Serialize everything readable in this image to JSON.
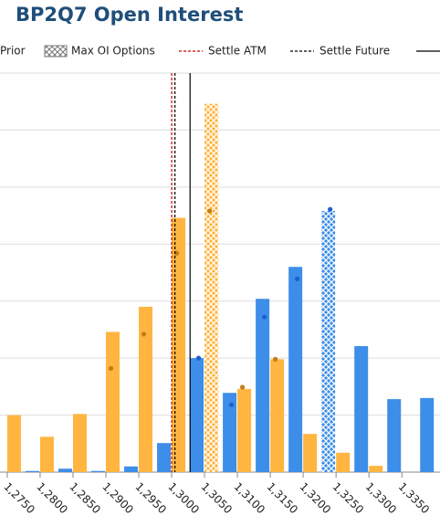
{
  "chart_data": {
    "type": "bar",
    "title": "BP2Q7 Open Interest",
    "prior_label": "Prior",
    "hatch_label": "Max OI Options",
    "x": [
      1.275,
      1.28,
      1.285,
      1.29,
      1.295,
      1.3,
      1.305,
      1.31,
      1.315,
      1.32,
      1.325,
      1.33,
      1.335,
      1.34
    ],
    "xlim": [
      1.2739,
      1.3408
    ],
    "xticks": [
      {
        "value": 1.275,
        "label": "1,2750"
      },
      {
        "value": 1.28,
        "label": "1,2800"
      },
      {
        "value": 1.285,
        "label": "1,2850"
      },
      {
        "value": 1.29,
        "label": "1,2900"
      },
      {
        "value": 1.295,
        "label": "1,2950"
      },
      {
        "value": 1.3,
        "label": "1,3000"
      },
      {
        "value": 1.305,
        "label": "1,3050"
      },
      {
        "value": 1.31,
        "label": "1,3100"
      },
      {
        "value": 1.315,
        "label": "1,3150"
      },
      {
        "value": 1.32,
        "label": "1,3200"
      },
      {
        "value": 1.325,
        "label": "1,3250"
      },
      {
        "value": 1.33,
        "label": "1,3300"
      },
      {
        "value": 1.335,
        "label": "1,3350"
      }
    ],
    "ylim": [
      0,
      7
    ],
    "yticks": [
      0,
      1,
      2,
      3,
      4,
      5,
      6,
      7
    ],
    "grid": true,
    "series": [
      {
        "color": "#3d8ee8",
        "prior_color": "#1e5fd0",
        "max_oi_index": 10,
        "values": [
          null,
          0.02,
          0.06,
          0.02,
          0.1,
          0.51,
          2.0,
          1.39,
          3.04,
          3.6,
          4.58,
          2.21,
          1.28,
          1.3
        ],
        "prior": [
          null,
          null,
          null,
          null,
          null,
          null,
          2.0,
          1.18,
          2.72,
          3.39,
          4.61,
          null,
          null,
          null
        ]
      },
      {
        "color": "#ffb540",
        "prior_color": "#c27d12",
        "max_oi_index": 6,
        "values": [
          1.0,
          0.62,
          1.02,
          2.46,
          2.9,
          4.46,
          6.46,
          1.46,
          1.98,
          0.67,
          0.34,
          0.11,
          null,
          null
        ],
        "prior": [
          null,
          null,
          null,
          1.82,
          2.42,
          3.84,
          4.58,
          1.49,
          1.98,
          null,
          null,
          null,
          null,
          null
        ]
      }
    ],
    "reference_lines": [
      {
        "name": "Settle ATM",
        "value": 1.3,
        "color": "#cc0000",
        "dashed": true
      },
      {
        "name": "Settle Future",
        "value": 1.3005,
        "color": "#000000",
        "dashed": true
      },
      {
        "value": 1.3028,
        "color": "#000000",
        "dashed": false
      }
    ]
  }
}
